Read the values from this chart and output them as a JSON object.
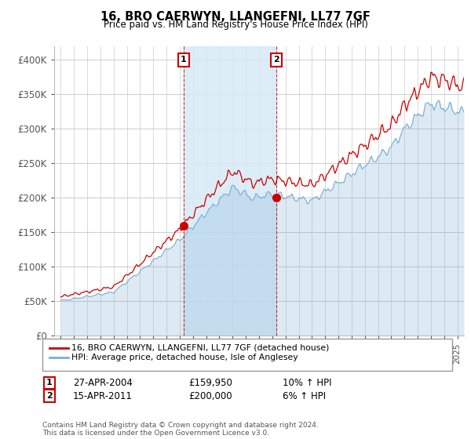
{
  "title": "16, BRO CAERWYN, LLANGEFNI, LL77 7GF",
  "subtitle": "Price paid vs. HM Land Registry's House Price Index (HPI)",
  "ylabel_ticks": [
    "£0",
    "£50K",
    "£100K",
    "£150K",
    "£200K",
    "£250K",
    "£300K",
    "£350K",
    "£400K"
  ],
  "ytick_values": [
    0,
    50000,
    100000,
    150000,
    200000,
    250000,
    300000,
    350000,
    400000
  ],
  "ylim": [
    0,
    420000
  ],
  "xlim_start": 1994.5,
  "xlim_end": 2025.5,
  "legend_line1": "16, BRO CAERWYN, LLANGEFNI, LL77 7GF (detached house)",
  "legend_line2": "HPI: Average price, detached house, Isle of Anglesey",
  "sale1_label": "1",
  "sale1_date": "27-APR-2004",
  "sale1_price": "£159,950",
  "sale1_hpi": "10% ↑ HPI",
  "sale1_year": 2004.3,
  "sale1_value": 159950,
  "sale2_label": "2",
  "sale2_date": "15-APR-2011",
  "sale2_price": "£200,000",
  "sale2_hpi": "6% ↑ HPI",
  "sale2_year": 2011.29,
  "sale2_value": 200000,
  "price_color": "#cc0000",
  "hpi_color": "#7aafd4",
  "hpi_fill_color": "#d8eaf7",
  "copyright_text": "Contains HM Land Registry data © Crown copyright and database right 2024.\nThis data is licensed under the Open Government Licence v3.0.",
  "grid_color": "#cccccc",
  "background_color": "#ffffff"
}
